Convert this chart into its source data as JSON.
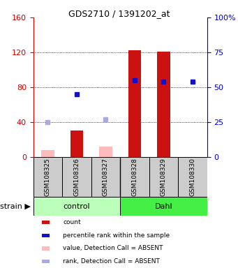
{
  "title": "GDS2710 / 1391202_at",
  "samples": [
    "GSM108325",
    "GSM108326",
    "GSM108327",
    "GSM108328",
    "GSM108329",
    "GSM108330"
  ],
  "groups": [
    "control",
    "control",
    "control",
    "Dahl",
    "Dahl",
    "Dahl"
  ],
  "group_colors": [
    "#bbffbb",
    "#44ee44"
  ],
  "red_values": [
    null,
    30,
    null,
    122,
    121,
    null
  ],
  "pink_values": [
    8,
    null,
    12,
    null,
    null,
    null
  ],
  "blue_values": [
    null,
    45,
    null,
    55,
    54,
    54
  ],
  "lightblue_values": [
    25,
    null,
    27,
    null,
    null,
    null
  ],
  "left_ylim": [
    0,
    160
  ],
  "right_ylim": [
    0,
    100
  ],
  "left_yticks": [
    0,
    40,
    80,
    120,
    160
  ],
  "right_yticks": [
    0,
    25,
    50,
    75,
    100
  ],
  "right_yticklabels": [
    "0",
    "25",
    "50",
    "75",
    "100%"
  ],
  "bar_width": 0.45,
  "red_color": "#cc1111",
  "pink_color": "#ffbbbb",
  "blue_color": "#1111cc",
  "lightblue_color": "#aaaadd",
  "bg_color": "#cccccc",
  "left_axis_color": "#cc0000",
  "right_axis_color": "#0000cc",
  "grid_dotted_at": [
    40,
    80,
    120
  ],
  "legend_items": [
    [
      "#cc1111",
      "count"
    ],
    [
      "#1111cc",
      "percentile rank within the sample"
    ],
    [
      "#ffbbbb",
      "value, Detection Call = ABSENT"
    ],
    [
      "#aaaadd",
      "rank, Detection Call = ABSENT"
    ]
  ],
  "strain_label": "strain",
  "group_names": [
    "control",
    "Dahl"
  ]
}
